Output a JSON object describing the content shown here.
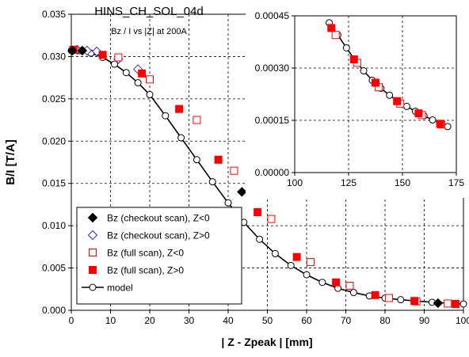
{
  "chart_data": [
    {
      "id": "main",
      "type": "scatter",
      "title": "HINS_CH_SOL_04d",
      "subtitle": "Bz / I vs |Z| at 200A",
      "xlabel": "| Z - Zpeak | [mm]",
      "ylabel": "B/I [T/A]",
      "xlim": [
        0,
        100
      ],
      "ylim": [
        0,
        0.035
      ],
      "xticks": [
        0,
        10,
        20,
        30,
        40,
        50,
        60,
        70,
        80,
        90,
        100
      ],
      "yticks": [
        0.0,
        0.005,
        0.01,
        0.015,
        0.02,
        0.025,
        0.03,
        0.035
      ],
      "xtick_labels": [
        "0",
        "10",
        "20",
        "30",
        "40",
        "50",
        "60",
        "70",
        "80",
        "90",
        "100"
      ],
      "ytick_labels": [
        "0.000",
        "0.005",
        "0.010",
        "0.015",
        "0.020",
        "0.025",
        "0.030",
        "0.035"
      ],
      "grid": true,
      "legend_position": "bottom-left",
      "series": [
        {
          "name": "Bz (checkout scan), Z<0",
          "marker": "diamond-filled",
          "color": "#000000",
          "x": [
            0.3,
            2.8,
            43.5,
            93.5
          ],
          "y": [
            0.0307,
            0.0307,
            0.014,
            0.00085
          ]
        },
        {
          "name": "Bz (checkout scan), Z>0",
          "marker": "diamond-open",
          "color": "#2b2bcc",
          "x": [
            1.5,
            4.0,
            6.5,
            12.0,
            17.0
          ],
          "y": [
            0.0308,
            0.0307,
            0.0306,
            0.0297,
            0.0285
          ]
        },
        {
          "name": "Bz (full scan), Z<0",
          "marker": "square-open",
          "color": "#ff0000",
          "x": [
            0.8,
            12.0,
            20.0,
            32.0,
            41.5,
            51.0,
            61.0,
            71.0,
            81.0,
            88.0,
            96.0
          ],
          "y": [
            0.0308,
            0.0299,
            0.0273,
            0.0225,
            0.0165,
            0.0108,
            0.0057,
            0.0029,
            0.00145,
            0.00105,
            0.0008
          ]
        },
        {
          "name": "Bz (full scan), Z>0",
          "marker": "square-filled",
          "color": "#ff0000",
          "x": [
            0.5,
            8.0,
            18.0,
            27.5,
            37.5,
            47.5,
            57.5,
            67.5,
            77.5,
            87.5,
            98.0
          ],
          "y": [
            0.0308,
            0.0302,
            0.028,
            0.0238,
            0.0178,
            0.0116,
            0.0063,
            0.0033,
            0.0018,
            0.0011,
            0.00075
          ]
        },
        {
          "name": "model",
          "marker": "circle-open-line",
          "color": "#000000",
          "x": [
            0,
            2,
            5,
            8,
            11,
            14,
            17,
            20,
            24,
            28,
            32,
            36,
            40,
            44,
            48,
            52,
            56,
            60,
            64,
            68,
            72,
            76,
            80,
            84,
            88,
            92,
            96,
            100
          ],
          "y": [
            0.0307,
            0.0307,
            0.0304,
            0.0299,
            0.0291,
            0.0281,
            0.0269,
            0.0255,
            0.023,
            0.0204,
            0.0178,
            0.0152,
            0.0127,
            0.0104,
            0.0084,
            0.0067,
            0.0053,
            0.0042,
            0.0033,
            0.0026,
            0.0021,
            0.0017,
            0.00145,
            0.00125,
            0.0011,
            0.00095,
            0.00085,
            0.00075
          ]
        }
      ]
    },
    {
      "id": "inset",
      "type": "scatter",
      "title": "",
      "xlabel": "",
      "ylabel": "",
      "xlim": [
        100,
        175
      ],
      "ylim": [
        0,
        0.00045
      ],
      "xticks": [
        100,
        125,
        150,
        175
      ],
      "yticks": [
        0,
        0.00015,
        0.0003,
        0.00045
      ],
      "xtick_labels": [
        "100",
        "125",
        "150",
        "175"
      ],
      "ytick_labels": [
        "0.00000",
        "0.00015",
        "0.00030",
        "0.00045"
      ],
      "grid": true,
      "series": [
        {
          "name": "Bz (full scan), Z<0",
          "marker": "square-open",
          "color": "#ff0000",
          "x": [
            119,
            129,
            139,
            149,
            159,
            168
          ],
          "y": [
            0.000395,
            0.000315,
            0.000245,
            0.000198,
            0.000165,
            0.000138
          ]
        },
        {
          "name": "Bz (full scan), Z>0",
          "marker": "square-filled",
          "color": "#ff0000",
          "x": [
            117,
            127.5,
            137.5,
            147.5,
            157.5,
            167.5
          ],
          "y": [
            0.000415,
            0.000325,
            0.000258,
            0.000205,
            0.00017,
            0.00014
          ]
        },
        {
          "name": "model",
          "marker": "circle-open-line",
          "color": "#000000",
          "x": [
            116,
            120,
            124,
            128,
            132,
            136,
            140,
            144,
            148,
            152,
            156,
            160,
            164,
            168,
            171
          ],
          "y": [
            0.00043,
            0.000395,
            0.000358,
            0.000322,
            0.000292,
            0.000265,
            0.000242,
            0.000222,
            0.000205,
            0.00019,
            0.000176,
            0.000163,
            0.000151,
            0.00014,
            0.000132
          ]
        }
      ]
    }
  ]
}
